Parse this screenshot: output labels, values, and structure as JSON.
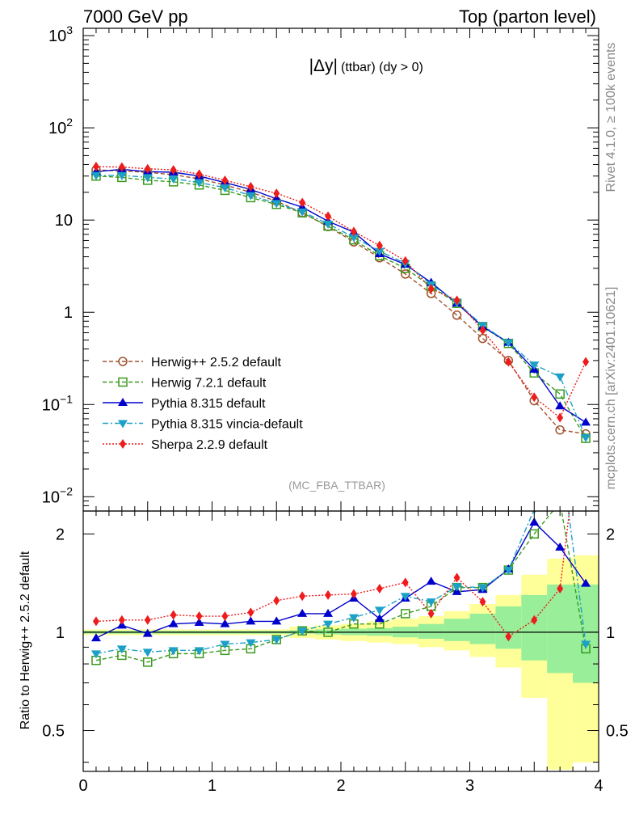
{
  "header": {
    "left": "7000 GeV pp",
    "right": "Top (parton level)"
  },
  "side_text": {
    "rivet": "Rivet 4.1.0, ≥ 100k events",
    "mcplots": "mcplots.cern.ch [arXiv:2401.10621]"
  },
  "chart_data": [
    {
      "type": "line",
      "panel": "main",
      "title": "|Δy| (ttbar) (dy > 0)",
      "title_main": "|Δy|",
      "title_sub": "(ttbar) (dy > 0)",
      "analysis_tag": "(MC_FBA_TTBAR)",
      "xlabel": "",
      "ylabel": "",
      "xlim": [
        0,
        4
      ],
      "ylim": [
        0.007,
        1200
      ],
      "yscale": "log",
      "y_tick_labels": [
        {
          "value": 0.01,
          "base": "10",
          "exp": "−2"
        },
        {
          "value": 0.1,
          "base": "10",
          "exp": "−1"
        },
        {
          "value": 1,
          "base": "1",
          "exp": ""
        },
        {
          "value": 10,
          "base": "10",
          "exp": ""
        },
        {
          "value": 100,
          "base": "10",
          "exp": "2"
        },
        {
          "value": 1000,
          "base": "10",
          "exp": "3"
        }
      ],
      "legend_position": "lower-left",
      "x": [
        0.1,
        0.3,
        0.5,
        0.7,
        0.9,
        1.1,
        1.3,
        1.5,
        1.7,
        1.9,
        2.1,
        2.3,
        2.5,
        2.7,
        2.9,
        3.1,
        3.3,
        3.5,
        3.7,
        3.9
      ],
      "series": [
        {
          "name": "Herwig++ 2.5.2 default",
          "color": "#a0522d",
          "dash": "5,3",
          "marker": "circle-open",
          "values": [
            35,
            34,
            33,
            31,
            28,
            24,
            20,
            16,
            12,
            8.5,
            5.8,
            3.9,
            2.6,
            1.6,
            0.93,
            0.52,
            0.3,
            0.11,
            0.053,
            0.048
          ]
        },
        {
          "name": "Herwig 7.2.1 default",
          "color": "#3a9a1e",
          "dash": "5,3",
          "marker": "square-open",
          "values": [
            30,
            29,
            27,
            26,
            24,
            21,
            17.5,
            14.8,
            12,
            8.6,
            6.1,
            4.1,
            3.0,
            1.9,
            1.25,
            0.7,
            0.46,
            0.22,
            0.13,
            0.043
          ]
        },
        {
          "name": "Pythia 8.315 default",
          "color": "#0000cd",
          "dash": "",
          "marker": "triangle-up",
          "values": [
            33.5,
            35.5,
            33.5,
            33,
            30,
            25.5,
            21.5,
            17,
            13.8,
            9.7,
            7.4,
            4.3,
            3.3,
            2.1,
            1.25,
            0.7,
            0.47,
            0.24,
            0.096,
            0.064
          ]
        },
        {
          "name": "Pythia 8.315 vincia-default",
          "color": "#1ca0c8",
          "dash": "7,3,2,3",
          "marker": "triangle-down",
          "values": [
            30.5,
            30.5,
            29,
            28,
            25.5,
            22.5,
            18.5,
            15.2,
            12.3,
            9.1,
            6.5,
            4.6,
            3.4,
            2.0,
            1.28,
            0.72,
            0.47,
            0.27,
            0.2,
            0.044
          ]
        },
        {
          "name": "Sherpa 2.2.9 default",
          "color": "#ee1c1c",
          "dash": "2,2",
          "marker": "diamond",
          "values": [
            38,
            37.5,
            36,
            35,
            31.5,
            27,
            23,
            19.5,
            15.5,
            11,
            7.5,
            5.3,
            3.6,
            1.8,
            1.35,
            0.64,
            0.29,
            0.12,
            0.072,
            0.29
          ]
        }
      ]
    },
    {
      "type": "line",
      "panel": "ratio",
      "title": "",
      "xlabel": "",
      "ylabel": "Ratio to Herwig++ 2.5.2 default",
      "xlim": [
        0,
        4
      ],
      "ylim": [
        0.375,
        2.35
      ],
      "yscale": "log",
      "x_ticks": [
        0,
        1,
        2,
        3,
        4
      ],
      "x_tick_labels": [
        "0",
        "1",
        "2",
        "3",
        "4"
      ],
      "y_ticks": [
        0.5,
        1,
        2
      ],
      "y_tick_labels": [
        "0.5",
        "1",
        "2"
      ],
      "reference_line": 1,
      "x": [
        0.1,
        0.3,
        0.5,
        0.7,
        0.9,
        1.1,
        1.3,
        1.5,
        1.7,
        1.9,
        2.1,
        2.3,
        2.5,
        2.7,
        2.9,
        3.1,
        3.3,
        3.5,
        3.7,
        3.9
      ],
      "uncertainty_band": {
        "edges": [
          0,
          0.2,
          0.4,
          0.6,
          0.8,
          1.0,
          1.2,
          1.4,
          1.6,
          1.8,
          2.0,
          2.2,
          2.4,
          2.6,
          2.8,
          3.0,
          3.2,
          3.4,
          3.6,
          3.8,
          4.0
        ],
        "stat_low": [
          0.99,
          0.99,
          0.99,
          0.99,
          0.99,
          0.99,
          0.99,
          0.99,
          0.99,
          0.985,
          0.98,
          0.975,
          0.965,
          0.955,
          0.94,
          0.92,
          0.89,
          0.82,
          0.75,
          0.7
        ],
        "stat_high": [
          1.01,
          1.01,
          1.01,
          1.01,
          1.01,
          1.01,
          1.01,
          1.01,
          1.015,
          1.02,
          1.025,
          1.03,
          1.04,
          1.06,
          1.1,
          1.14,
          1.2,
          1.3,
          1.4,
          1.4
        ],
        "tot_low": [
          0.98,
          0.98,
          0.98,
          0.98,
          0.98,
          0.98,
          0.98,
          0.98,
          0.96,
          0.95,
          0.94,
          0.93,
          0.92,
          0.9,
          0.88,
          0.84,
          0.78,
          0.63,
          0.38,
          0.4
        ],
        "tot_high": [
          1.02,
          1.02,
          1.02,
          1.02,
          1.02,
          1.02,
          1.02,
          1.02,
          1.04,
          1.05,
          1.06,
          1.08,
          1.1,
          1.12,
          1.16,
          1.22,
          1.3,
          1.5,
          1.68,
          1.72
        ]
      },
      "series": [
        {
          "name": "Herwig 7.2.1 default",
          "color": "#3a9a1e",
          "dash": "5,3",
          "marker": "square-open",
          "values": [
            0.82,
            0.85,
            0.81,
            0.86,
            0.86,
            0.88,
            0.89,
            0.95,
            1.01,
            1.0,
            1.06,
            1.06,
            1.14,
            1.2,
            1.37,
            1.37,
            1.55,
            2.0,
            2.5,
            0.89
          ]
        },
        {
          "name": "Pythia 8.315 default",
          "color": "#0000cd",
          "dash": "",
          "marker": "triangle-up",
          "values": [
            0.96,
            1.05,
            0.99,
            1.06,
            1.07,
            1.06,
            1.08,
            1.08,
            1.14,
            1.14,
            1.27,
            1.1,
            1.27,
            1.43,
            1.33,
            1.35,
            1.56,
            2.17,
            1.82,
            1.41
          ]
        },
        {
          "name": "Pythia 8.315 vincia-default",
          "color": "#1ca0c8",
          "dash": "7,3,2,3",
          "marker": "triangle-down",
          "values": [
            0.86,
            0.89,
            0.87,
            0.88,
            0.88,
            0.92,
            0.93,
            0.95,
            1.01,
            1.06,
            1.11,
            1.17,
            1.29,
            1.24,
            1.38,
            1.37,
            1.55,
            2.38,
            3.7,
            0.92
          ]
        },
        {
          "name": "Sherpa 2.2.9 default",
          "color": "#ee1c1c",
          "dash": "2,2",
          "marker": "diamond",
          "values": [
            1.08,
            1.09,
            1.09,
            1.13,
            1.12,
            1.12,
            1.15,
            1.25,
            1.29,
            1.3,
            1.31,
            1.36,
            1.42,
            1.14,
            1.47,
            1.24,
            0.97,
            1.09,
            1.36,
            6.0
          ]
        }
      ]
    }
  ]
}
